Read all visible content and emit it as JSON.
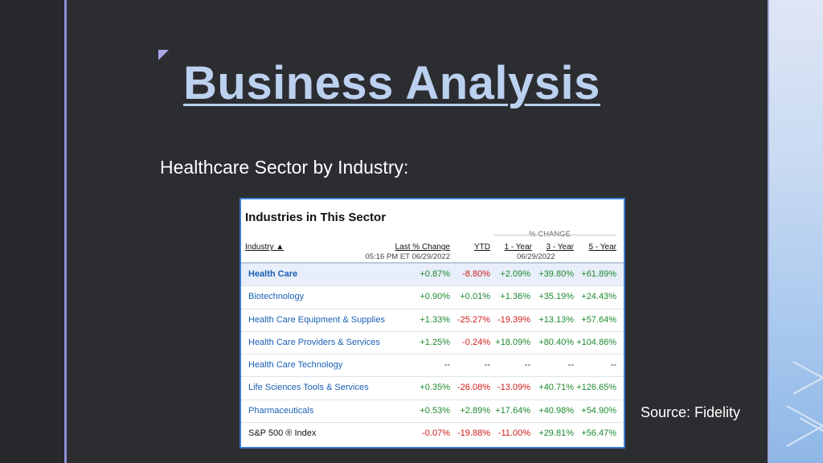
{
  "slide": {
    "title": "Business Analysis",
    "subtitle": "Healthcare Sector by Industry:",
    "source": "Source: Fidelity"
  },
  "table": {
    "heading": "Industries in This Sector",
    "group_label": "% CHANGE",
    "columns": {
      "industry": "Industry ▲",
      "last_change": "Last % Change",
      "last_change_sub": "05:16 PM ET 06/29/2022",
      "ytd": "YTD",
      "one_year": "1 - Year",
      "three_year": "3 - Year",
      "five_year": "5 - Year",
      "period_sub": "06/29/2022"
    },
    "rows": [
      {
        "name": "Health Care",
        "last": "+0.87%",
        "ytd": "-8.80%",
        "y1": "+2.09%",
        "y3": "+39.80%",
        "y5": "+61.89%"
      },
      {
        "name": "Biotechnology",
        "last": "+0.90%",
        "ytd": "+0.01%",
        "y1": "+1.36%",
        "y3": "+35.19%",
        "y5": "+24.43%"
      },
      {
        "name": "Health Care Equipment & Supplies",
        "last": "+1.33%",
        "ytd": "-25.27%",
        "y1": "-19.39%",
        "y3": "+13.13%",
        "y5": "+57.64%"
      },
      {
        "name": "Health Care Providers & Services",
        "last": "+1.25%",
        "ytd": "-0.24%",
        "y1": "+18.09%",
        "y3": "+80.40%",
        "y5": "+104.86%"
      },
      {
        "name": "Health Care Technology",
        "last": "--",
        "ytd": "--",
        "y1": "--",
        "y3": "--",
        "y5": "--"
      },
      {
        "name": "Life Sciences Tools & Services",
        "last": "+0.35%",
        "ytd": "-26.08%",
        "y1": "-13.09%",
        "y3": "+40.71%",
        "y5": "+126.65%"
      },
      {
        "name": "Pharmaceuticals",
        "last": "+0.53%",
        "ytd": "+2.89%",
        "y1": "+17.64%",
        "y3": "+40.98%",
        "y5": "+54.90%"
      },
      {
        "name": "S&P 500 ® Index",
        "last": "-0.07%",
        "ytd": "-19.88%",
        "y1": "-11.00%",
        "y3": "+29.81%",
        "y5": "+56.47%"
      }
    ]
  },
  "colors": {
    "title": "#bcd0ef",
    "positive": "#1d8a2e",
    "negative": "#d11a1a",
    "link": "#1a5fb4",
    "frame": "#3a7bd5"
  }
}
